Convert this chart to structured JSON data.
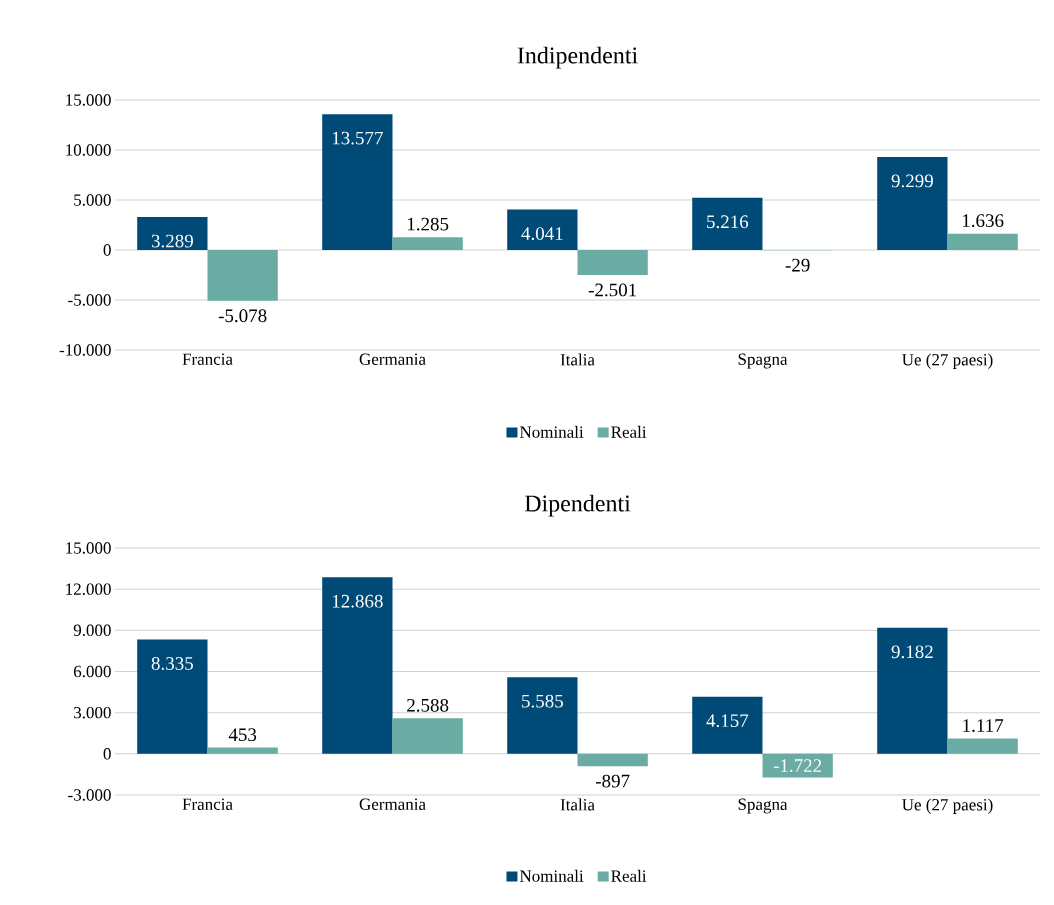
{
  "chart_data": [
    {
      "type": "bar",
      "title": "Indipendenti",
      "categories": [
        "Francia",
        "Germania",
        "Italia",
        "Spagna",
        "Ue (27 paesi)"
      ],
      "series": [
        {
          "name": "Nominali",
          "color": "#004a77",
          "values": [
            3289,
            13577,
            4041,
            5216,
            9299
          ],
          "value_labels": [
            "3.289",
            "13.577",
            "4.041",
            "5.216",
            "9.299"
          ]
        },
        {
          "name": "Reali",
          "color": "#6aaba4",
          "values": [
            -5078,
            1285,
            -2501,
            -29,
            1636
          ],
          "value_labels": [
            "-5.078",
            "1.285",
            "-2.501",
            "-29",
            "1.636"
          ]
        }
      ],
      "ylim": [
        -10000,
        15000
      ],
      "yticks": [
        {
          "value": -10000,
          "label": "-10.000"
        },
        {
          "value": -5000,
          "label": "-5.000"
        },
        {
          "value": 0,
          "label": "0"
        },
        {
          "value": 5000,
          "label": "5.000"
        },
        {
          "value": 10000,
          "label": "10.000"
        },
        {
          "value": 15000,
          "label": "15.000"
        }
      ],
      "grid": "y",
      "legend": "bottom"
    },
    {
      "type": "bar",
      "title": "Dipendenti",
      "categories": [
        "Francia",
        "Germania",
        "Italia",
        "Spagna",
        "Ue (27 paesi)"
      ],
      "series": [
        {
          "name": "Nominali",
          "color": "#004a77",
          "values": [
            8335,
            12868,
            5585,
            4157,
            9182
          ],
          "value_labels": [
            "8.335",
            "12.868",
            "5.585",
            "4.157",
            "9.182"
          ]
        },
        {
          "name": "Reali",
          "color": "#6aaba4",
          "values": [
            453,
            2588,
            -897,
            -1722,
            1117
          ],
          "value_labels": [
            "453",
            "2.588",
            "-897",
            "-1.722",
            "1.117"
          ]
        }
      ],
      "ylim": [
        -3000,
        15000
      ],
      "yticks": [
        {
          "value": -3000,
          "label": "-3.000"
        },
        {
          "value": 0,
          "label": "0"
        },
        {
          "value": 3000,
          "label": "3.000"
        },
        {
          "value": 6000,
          "label": "6.000"
        },
        {
          "value": 9000,
          "label": "9.000"
        },
        {
          "value": 12000,
          "label": "12.000"
        },
        {
          "value": 15000,
          "label": "15.000"
        }
      ],
      "grid": "y",
      "legend": "bottom"
    }
  ]
}
